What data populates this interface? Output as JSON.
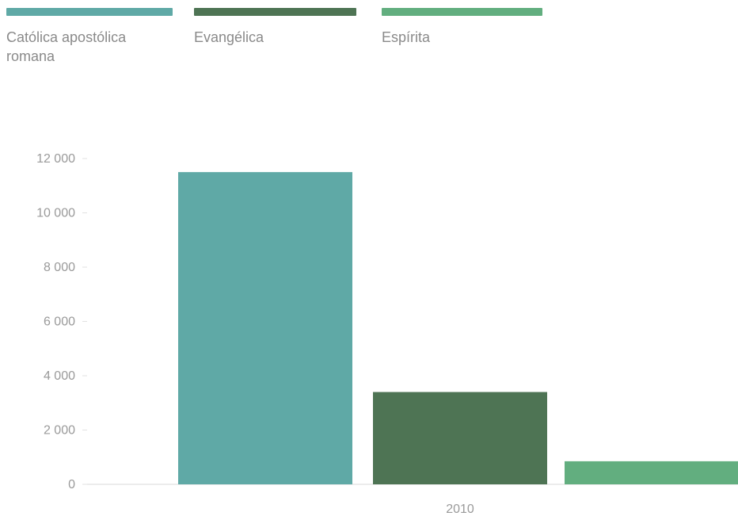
{
  "legend": {
    "items": [
      {
        "label": "Católica apostólica romana",
        "color": "#5fa9a6"
      },
      {
        "label": "Evangélica",
        "color": "#4e7454"
      },
      {
        "label": "Espírita",
        "color": "#62ae7f"
      }
    ]
  },
  "chart_data": {
    "type": "bar",
    "categories": [
      "2010"
    ],
    "series": [
      {
        "name": "Católica apostólica romana",
        "values": [
          11500
        ],
        "color": "#5fa9a6"
      },
      {
        "name": "Evangélica",
        "values": [
          3400
        ],
        "color": "#4e7454"
      },
      {
        "name": "Espírita",
        "values": [
          850
        ],
        "color": "#62ae7f"
      }
    ],
    "y_ticks": [
      "12 000",
      "10 000",
      "8 000",
      "6 000",
      "4 000",
      "2 000",
      "0"
    ],
    "ylim": [
      0,
      12000
    ],
    "grid": false,
    "legend_position": "top"
  }
}
